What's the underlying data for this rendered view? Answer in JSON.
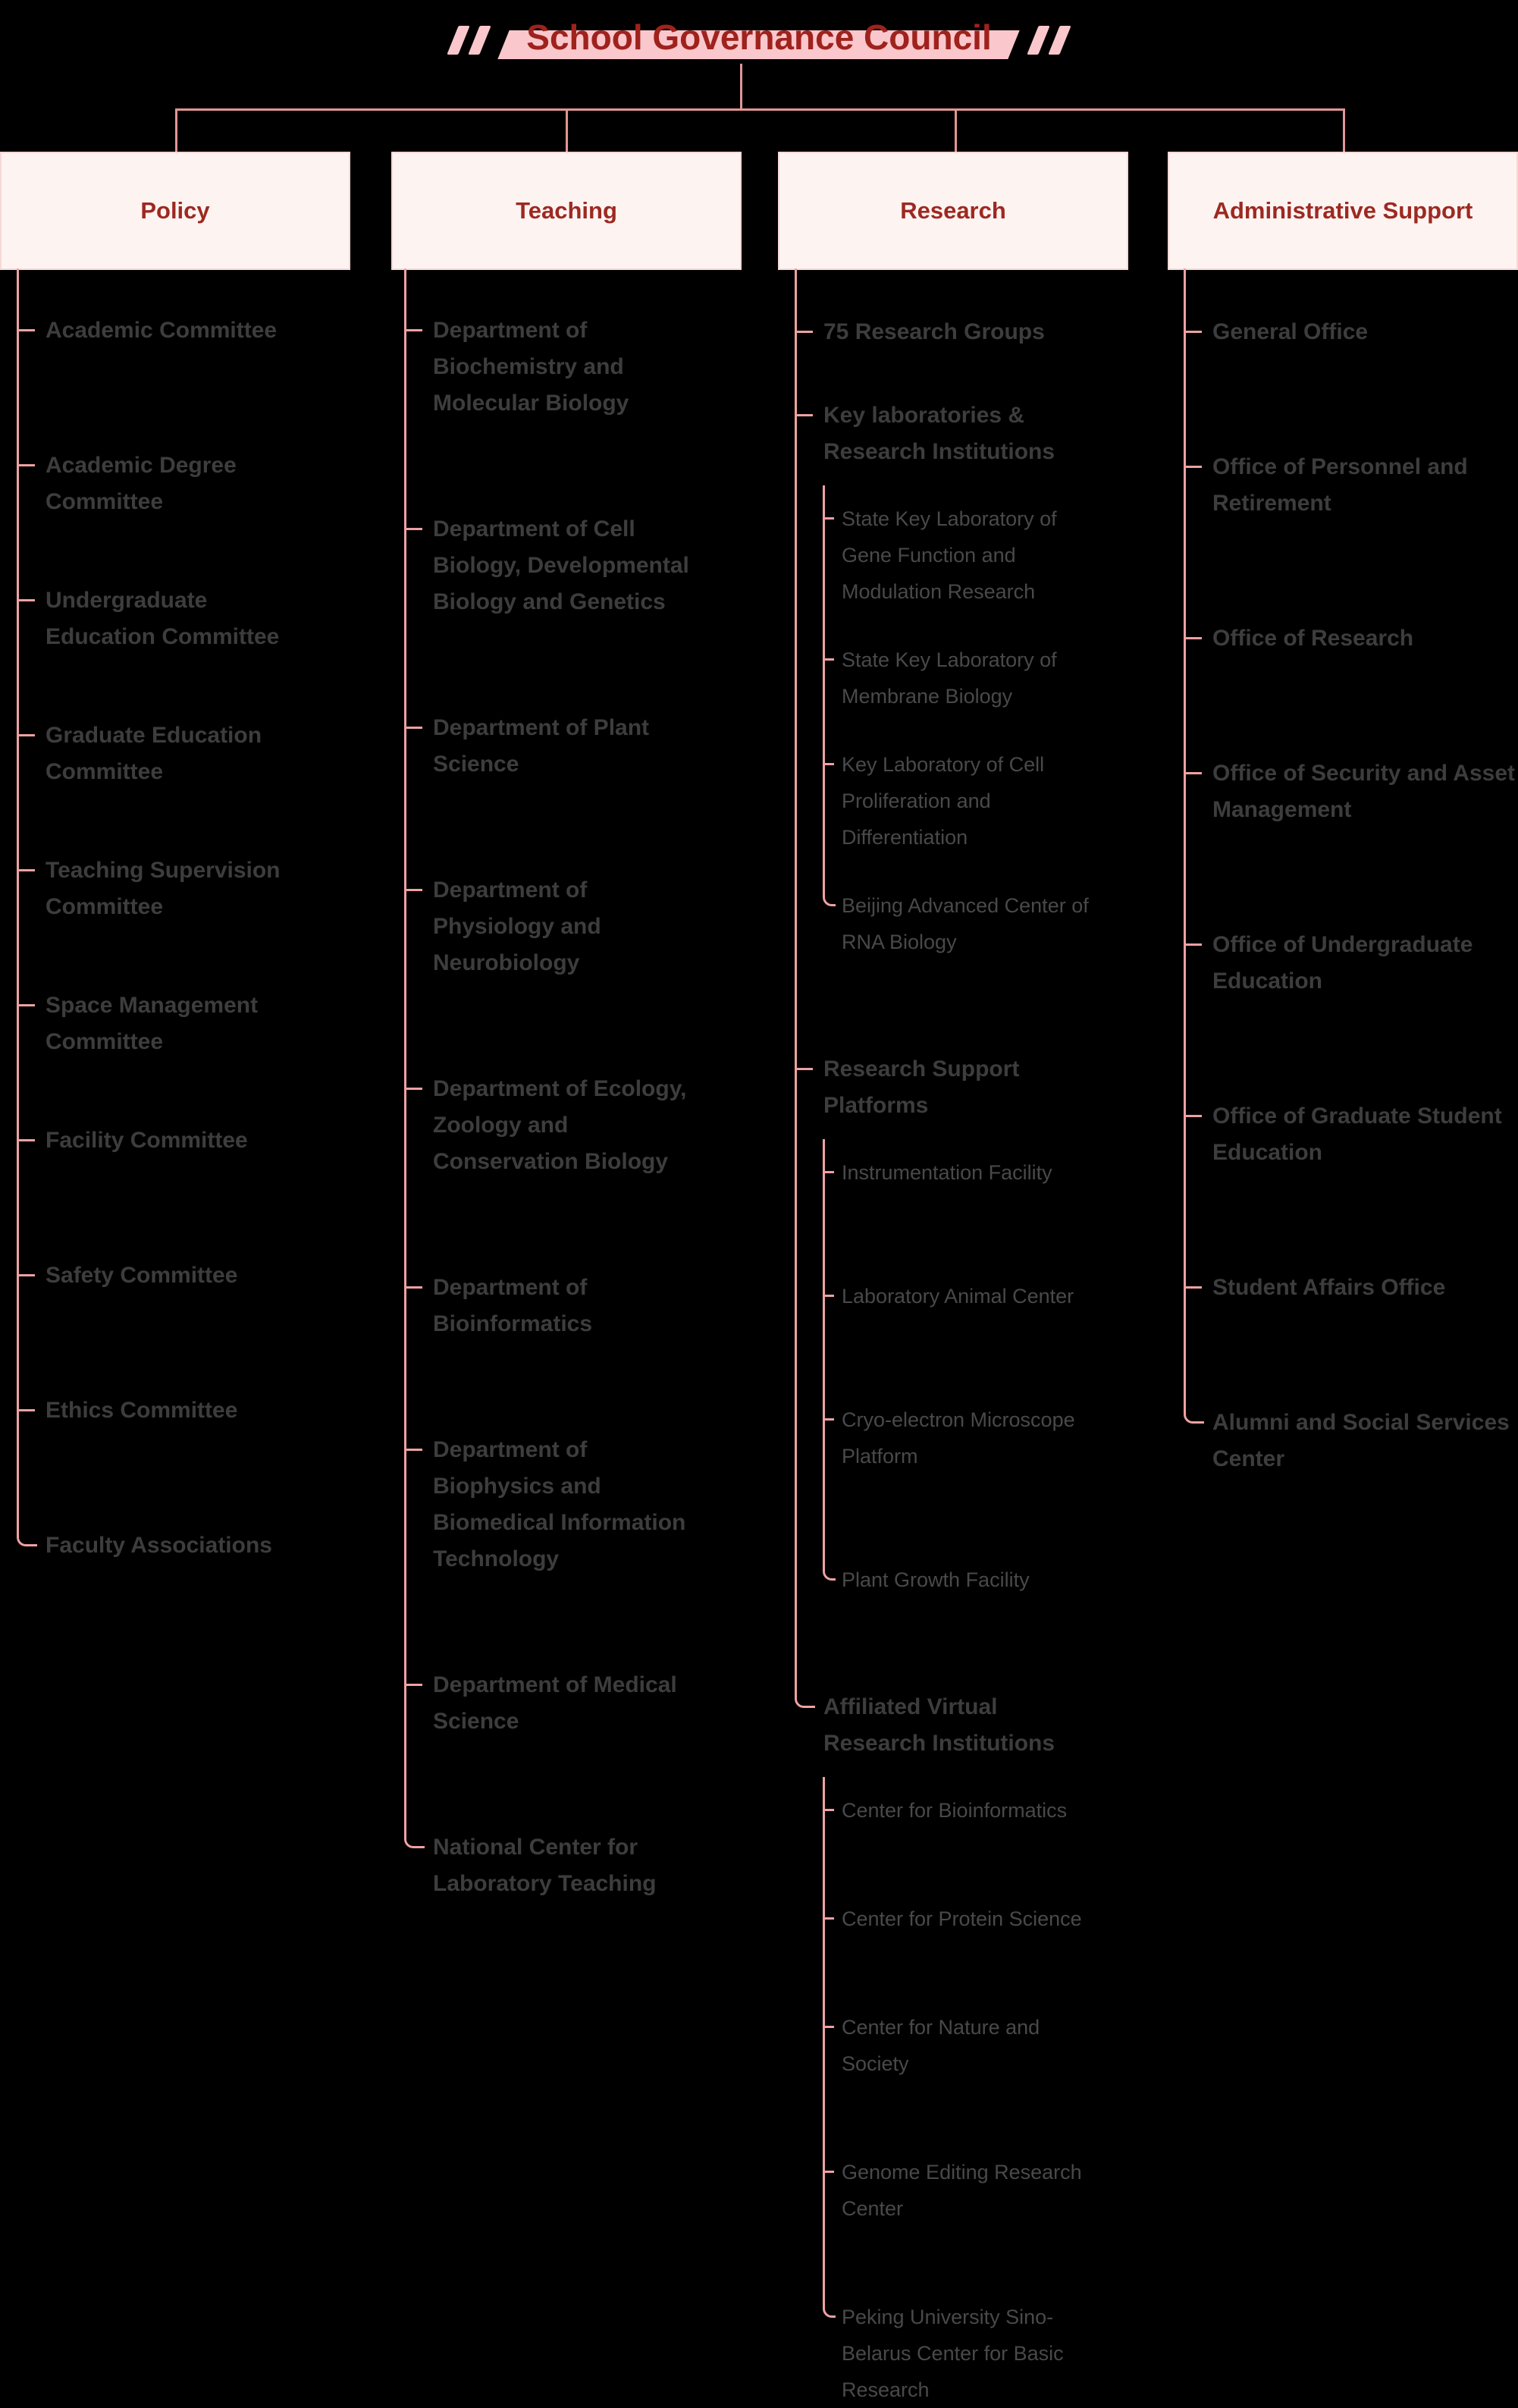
{
  "title": "School Governance Council",
  "colors": {
    "background": "#000000",
    "title_red": "#9f221c",
    "highlight_band_pink": "#f9c7cc",
    "connector_pink": "#e39595",
    "spine_pink": "#efa1a1",
    "box_fill": "#fdf4f2",
    "box_border": "#f6d9d6",
    "box_text_red": "#9d2921",
    "item_text": "#3d3d3d",
    "subitem_text": "#494949"
  },
  "columns": [
    {
      "header": "Policy",
      "items": [
        {
          "label": "Academic Committee"
        },
        {
          "label": "Academic Degree Committee"
        },
        {
          "label": "Undergraduate Education Committee"
        },
        {
          "label": "Graduate Education Committee"
        },
        {
          "label": "Teaching Supervision Committee"
        },
        {
          "label": "Space Management Committee"
        },
        {
          "label": "Facility Committee"
        },
        {
          "label": "Safety Committee"
        },
        {
          "label": "Ethics Committee"
        },
        {
          "label": "Faculty Associations"
        }
      ]
    },
    {
      "header": "Teaching",
      "items": [
        {
          "label": "Department of Biochemistry and Molecular Biology"
        },
        {
          "label": "Department of Cell Biology, Developmental Biology and Genetics"
        },
        {
          "label": "Department of Plant Science"
        },
        {
          "label": "Department of Physiology and Neurobiology"
        },
        {
          "label": "Department of Ecology, Zoology and Conservation Biology"
        },
        {
          "label": "Department of Bioinformatics"
        },
        {
          "label": "Department of Biophysics and Biomedical Information Technology"
        },
        {
          "label": "Department of Medical Science"
        },
        {
          "label": "National Center for Laboratory Teaching"
        }
      ]
    },
    {
      "header": "Research",
      "items": [
        {
          "label": "75 Research Groups"
        },
        {
          "label": "Key laboratories & Research Institutions",
          "children": [
            {
              "label": "State Key Laboratory of Gene Function and Modulation Research"
            },
            {
              "label": "State Key Laboratory of Membrane Biology"
            },
            {
              "label": "Key Laboratory of Cell Proliferation and Differentiation"
            },
            {
              "label": "Beijing Advanced Center of RNA Biology"
            }
          ]
        },
        {
          "label": "Research Support Platforms",
          "children": [
            {
              "label": "Instrumentation Facility"
            },
            {
              "label": "Laboratory Animal Center"
            },
            {
              "label": "Cryo-electron Microscope Platform"
            },
            {
              "label": "Plant Growth Facility"
            }
          ]
        },
        {
          "label": "Affiliated Virtual Research Institutions",
          "children": [
            {
              "label": "Center for Bioinformatics"
            },
            {
              "label": "Center for Protein Science"
            },
            {
              "label": "Center for Nature and Society"
            },
            {
              "label": "Genome Editing Research Center"
            },
            {
              "label": "Peking University Sino-Belarus Center for Basic Research"
            }
          ]
        }
      ]
    },
    {
      "header": "Administrative Support",
      "items": [
        {
          "label": "General Office"
        },
        {
          "label": "Office of Personnel and Retirement"
        },
        {
          "label": "Office of Research"
        },
        {
          "label": "Office of Security and Asset Management"
        },
        {
          "label": "Office of Undergraduate Education"
        },
        {
          "label": "Office of Graduate Student Education"
        },
        {
          "label": "Student Affairs Office"
        },
        {
          "label": "Alumni and Social Services Center"
        }
      ]
    }
  ]
}
